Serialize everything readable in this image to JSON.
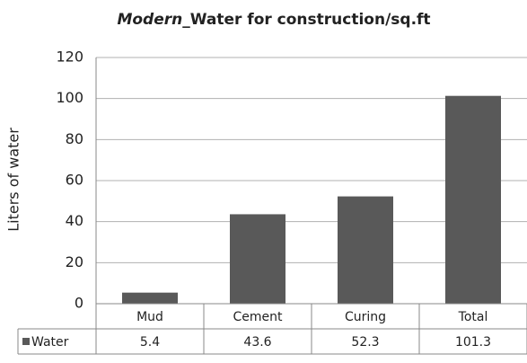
{
  "chart_data": {
    "type": "bar",
    "title": [
      {
        "text": "Modern",
        "italic": true
      },
      {
        "text": "_Water for construction/sq.ft",
        "italic": false
      }
    ],
    "y_label": "Liters of water",
    "categories": [
      "Mud",
      "Cement",
      "Curing",
      "Total"
    ],
    "series": [
      {
        "name": "Water",
        "color": "#595959",
        "values": [
          5.4,
          43.6,
          52.3,
          101.3
        ]
      }
    ],
    "ylim": [
      0,
      120
    ],
    "yticks": [
      0,
      20,
      40,
      60,
      80,
      100,
      120
    ],
    "grid": true,
    "data_table": true
  }
}
